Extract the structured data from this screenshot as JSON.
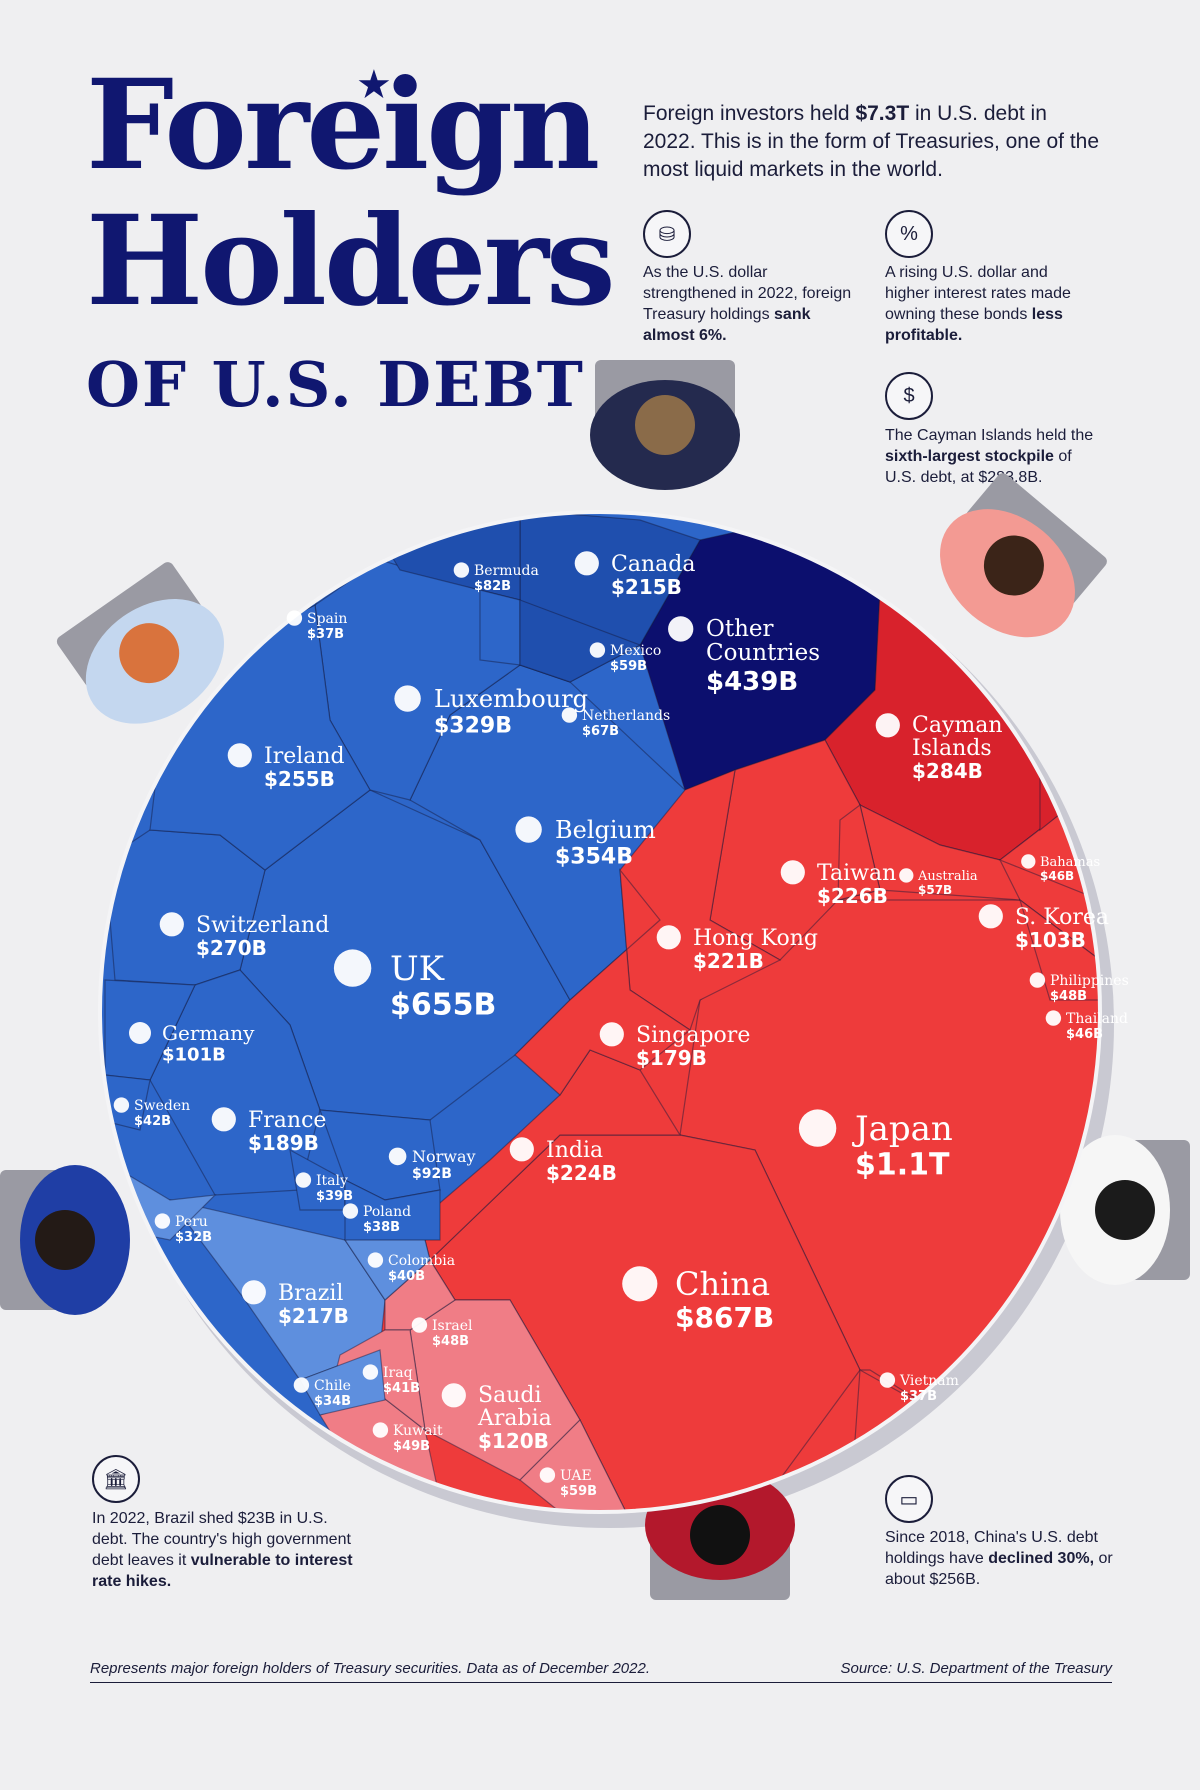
{
  "title": {
    "line1": "Foreign",
    "line2": "Holders",
    "line3": "OF U.S. DEBT"
  },
  "lead": {
    "before": "Foreign investors held ",
    "bold": "$7.3T",
    "after": " in U.S. debt in 2022. This is in the form of Treasuries, one of the most liquid markets in the world."
  },
  "notes": {
    "dollar": {
      "text": "As the U.S. dollar strengthened in 2022, foreign Treasury holdings ",
      "bold": "sank almost 6%.",
      "icon": "coins-down-icon"
    },
    "rates": {
      "text": "A rising U.S. dollar and higher interest rates made owning these bonds ",
      "bold": "less profitable.",
      "icon": "house-percent-icon"
    },
    "cayman": {
      "text": "The Cayman Islands held the ",
      "bold": "sixth-largest stockpile",
      "after": " of U.S. debt, at $283.8B.",
      "icon": "money-bag-icon"
    },
    "brazil": {
      "text": "In 2022, Brazil shed $23B in U.S. debt. The country's high government debt leaves it ",
      "bold": "vulnerable to interest rate hikes.",
      "icon": "bank-icon"
    },
    "china": {
      "text": "Since 2018, China's U.S. debt holdings have ",
      "bold": "declined 30%,",
      "after": " or about $256B.",
      "icon": "banknote-icon"
    }
  },
  "footer": {
    "left": "Represents major foreign holders of Treasury securities. Data as of December 2022.",
    "right": "Source: U.S. Department of the Treasury"
  },
  "colors": {
    "europe": "#2d66c9",
    "europe_dark": "#1f4fae",
    "americas_light": "#5e8fde",
    "other": "#0c0f6e",
    "asia": "#ee3b3b",
    "asia_dark": "#d8222c",
    "mideast": "#f07d86"
  },
  "chart_data": {
    "type": "voronoi-treemap",
    "unit": "USD",
    "cells": [
      {
        "name": "Japan",
        "value_label": "$1.1T",
        "value": 1100,
        "group": "asia"
      },
      {
        "name": "China",
        "value_label": "$867B",
        "value": 867,
        "group": "asia"
      },
      {
        "name": "UK",
        "value_label": "$655B",
        "value": 655,
        "group": "europe"
      },
      {
        "name": "Other Countries",
        "value_label": "$439B",
        "value": 439,
        "group": "other"
      },
      {
        "name": "Belgium",
        "value_label": "$354B",
        "value": 354,
        "group": "europe"
      },
      {
        "name": "Luxembourg",
        "value_label": "$329B",
        "value": 329,
        "group": "europe"
      },
      {
        "name": "Cayman Islands",
        "value_label": "$284B",
        "value": 284,
        "group": "asia_dark"
      },
      {
        "name": "Switzerland",
        "value_label": "$270B",
        "value": 270,
        "group": "europe"
      },
      {
        "name": "Ireland",
        "value_label": "$255B",
        "value": 255,
        "group": "europe"
      },
      {
        "name": "Taiwan",
        "value_label": "$226B",
        "value": 226,
        "group": "asia"
      },
      {
        "name": "India",
        "value_label": "$224B",
        "value": 224,
        "group": "asia"
      },
      {
        "name": "Hong Kong",
        "value_label": "$221B",
        "value": 221,
        "group": "asia"
      },
      {
        "name": "Brazil",
        "value_label": "$217B",
        "value": 217,
        "group": "americas_light"
      },
      {
        "name": "Canada",
        "value_label": "$215B",
        "value": 215,
        "group": "europe_dark"
      },
      {
        "name": "France",
        "value_label": "$189B",
        "value": 189,
        "group": "europe"
      },
      {
        "name": "Singapore",
        "value_label": "$179B",
        "value": 179,
        "group": "asia"
      },
      {
        "name": "Saudi Arabia",
        "value_label": "$120B",
        "value": 120,
        "group": "mideast"
      },
      {
        "name": "S. Korea",
        "value_label": "$103B",
        "value": 103,
        "group": "asia"
      },
      {
        "name": "Germany",
        "value_label": "$101B",
        "value": 101,
        "group": "europe"
      },
      {
        "name": "Norway",
        "value_label": "$92B",
        "value": 92,
        "group": "europe"
      },
      {
        "name": "Bermuda",
        "value_label": "$82B",
        "value": 82,
        "group": "europe_dark"
      },
      {
        "name": "Netherlands",
        "value_label": "$67B",
        "value": 67,
        "group": "europe"
      },
      {
        "name": "Mexico",
        "value_label": "$59B",
        "value": 59,
        "group": "europe_dark"
      },
      {
        "name": "UAE",
        "value_label": "$59B",
        "value": 59,
        "group": "mideast"
      },
      {
        "name": "Australia",
        "value_label": "$57B",
        "value": 57,
        "group": "asia"
      },
      {
        "name": "Kuwait",
        "value_label": "$49B",
        "value": 49,
        "group": "mideast"
      },
      {
        "name": "Philippines",
        "value_label": "$48B",
        "value": 48,
        "group": "asia"
      },
      {
        "name": "Israel",
        "value_label": "$48B",
        "value": 48,
        "group": "mideast"
      },
      {
        "name": "Bahamas",
        "value_label": "$46B",
        "value": 46,
        "group": "asia_dark"
      },
      {
        "name": "Thailand",
        "value_label": "$46B",
        "value": 46,
        "group": "asia"
      },
      {
        "name": "Sweden",
        "value_label": "$42B",
        "value": 42,
        "group": "europe"
      },
      {
        "name": "Iraq",
        "value_label": "$41B",
        "value": 41,
        "group": "mideast"
      },
      {
        "name": "Colombia",
        "value_label": "$40B",
        "value": 40,
        "group": "americas_light"
      },
      {
        "name": "Italy",
        "value_label": "$39B",
        "value": 39,
        "group": "europe"
      },
      {
        "name": "Poland",
        "value_label": "$38B",
        "value": 38,
        "group": "europe"
      },
      {
        "name": "Spain",
        "value_label": "$37B",
        "value": 37,
        "group": "europe"
      },
      {
        "name": "Vietnam",
        "value_label": "$37B",
        "value": 37,
        "group": "asia"
      },
      {
        "name": "Chile",
        "value_label": "$34B",
        "value": 34,
        "group": "americas_light"
      },
      {
        "name": "Peru",
        "value_label": "$32B",
        "value": 32,
        "group": "americas_light"
      }
    ]
  }
}
